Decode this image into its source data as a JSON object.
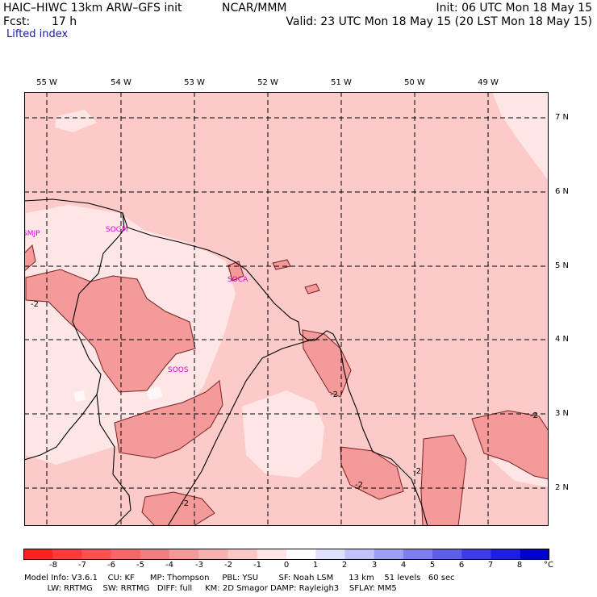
{
  "header": {
    "title": "HAIC–HIWC 13km ARW–GFS init",
    "org": "NCAR/MMM",
    "init": "Init: 06 UTC Mon 18 May 15",
    "fcst_label": "Fcst:",
    "fcst_value": "17 h",
    "valid": "Valid: 23 UTC Mon 18 May 15 (20 LST Mon 18 May 15)",
    "field": "Lifted index"
  },
  "map": {
    "lon_labels": [
      "55 W",
      "54 W",
      "53 W",
      "52 W",
      "51 W",
      "50 W",
      "49 W"
    ],
    "lat_labels": [
      "7 N",
      "6 N",
      "5 N",
      "4 N",
      "3 N",
      "2 N"
    ],
    "stations": [
      "SMJP",
      "SOGM",
      "SOCA",
      "SOOS"
    ],
    "contour_labels": [
      "-2",
      "-2",
      "-2",
      "-2",
      "-2",
      "-2"
    ]
  },
  "colorbar": {
    "labels": [
      "-8",
      "-7",
      "-6",
      "-5",
      "-4",
      "-3",
      "-2",
      "-1",
      "0",
      "1",
      "2",
      "3",
      "4",
      "5",
      "6",
      "7",
      "8"
    ],
    "unit": "°C",
    "colors": [
      "#ff2020",
      "#ff3a3a",
      "#ff5252",
      "#f46868",
      "#f08080",
      "#f09a9a",
      "#f6b2b2",
      "#fbc8c8",
      "#ffe6e6",
      "#ffffff",
      "#e0e0ff",
      "#c2c2f8",
      "#a0a0f2",
      "#7f7fec",
      "#5e5ee6",
      "#3c3ce2",
      "#1e1ede",
      "#0000cc"
    ]
  },
  "footer": {
    "line1": "Model Info: V3.6.1    CU: KF      MP: Thompson     PBL: YSU        SF: Noah LSM      13 km    51 levels   60 sec",
    "line2": "         LW: RRTMG    SW: RRTMG   DIFF: full     KM: 2D Smagor DAMP: Rayleigh3    SFLAY: MM5"
  }
}
